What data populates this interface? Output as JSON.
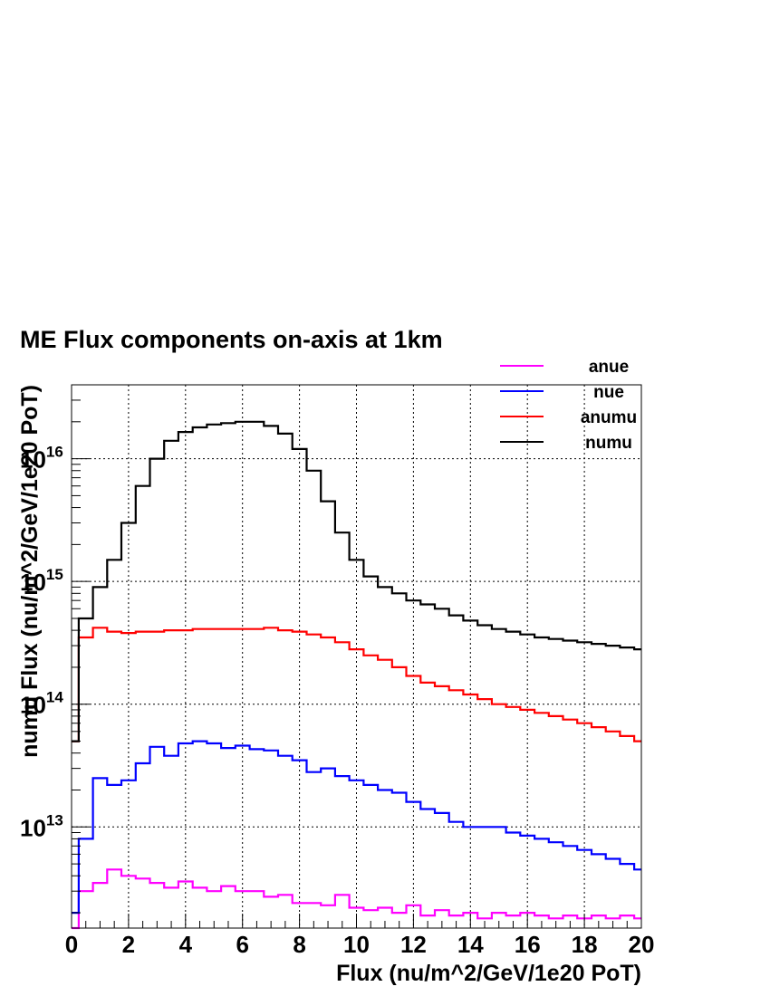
{
  "chart_data": {
    "type": "line",
    "title": "ME Flux components on-axis at 1km",
    "xlabel": "Flux (nu/m^2/GeV/1e20 PoT)",
    "ylabel": "numu Flux (nu/m^2/GeV/1e20 PoT)",
    "xlim": [
      0,
      20
    ],
    "ylim": [
      1500000000000.0,
      4e+16
    ],
    "yscale": "log",
    "grid": true,
    "legend_position": "top-right",
    "x_ticks": [
      "0",
      "2",
      "4",
      "6",
      "8",
      "10",
      "12",
      "14",
      "16",
      "18",
      "20"
    ],
    "y_ticks": [
      {
        "base": "10",
        "exp": "13"
      },
      {
        "base": "10",
        "exp": "14"
      },
      {
        "base": "10",
        "exp": "15"
      },
      {
        "base": "10",
        "exp": "16"
      }
    ],
    "x": [
      0,
      0.5,
      1,
      1.5,
      2,
      2.5,
      3,
      3.5,
      4,
      4.5,
      5,
      5.5,
      6,
      6.5,
      7,
      7.5,
      8,
      8.5,
      9,
      9.5,
      10,
      10.5,
      11,
      11.5,
      12,
      12.5,
      13,
      13.5,
      14,
      14.5,
      15,
      15.5,
      16,
      16.5,
      17,
      17.5,
      18,
      18.5,
      19,
      19.5,
      20
    ],
    "series": [
      {
        "name": "anue",
        "color": "#ff00ff",
        "values": [
          1500000000000.0,
          3000000000000.0,
          3500000000000.0,
          4500000000000.0,
          4000000000000.0,
          3800000000000.0,
          3500000000000.0,
          3200000000000.0,
          3600000000000.0,
          3200000000000.0,
          3000000000000.0,
          3300000000000.0,
          3000000000000.0,
          3000000000000.0,
          2700000000000.0,
          2800000000000.0,
          2400000000000.0,
          2400000000000.0,
          2300000000000.0,
          2800000000000.0,
          2200000000000.0,
          2100000000000.0,
          2200000000000.0,
          2000000000000.0,
          2300000000000.0,
          1900000000000.0,
          2100000000000.0,
          1900000000000.0,
          2000000000000.0,
          1800000000000.0,
          2000000000000.0,
          1900000000000.0,
          2000000000000.0,
          1900000000000.0,
          1800000000000.0,
          1900000000000.0,
          1800000000000.0,
          1900000000000.0,
          1800000000000.0,
          1900000000000.0,
          1800000000000.0
        ]
      },
      {
        "name": "nue",
        "color": "#0000ff",
        "values": [
          2000000000000.0,
          8000000000000.0,
          25000000000000.0,
          22000000000000.0,
          24000000000000.0,
          33000000000000.0,
          45000000000000.0,
          38000000000000.0,
          48000000000000.0,
          50000000000000.0,
          48000000000000.0,
          44000000000000.0,
          46000000000000.0,
          43000000000000.0,
          42000000000000.0,
          38000000000000.0,
          35000000000000.0,
          28000000000000.0,
          30000000000000.0,
          26000000000000.0,
          24000000000000.0,
          22000000000000.0,
          20000000000000.0,
          19000000000000.0,
          16000000000000.0,
          14000000000000.0,
          13000000000000.0,
          11000000000000.0,
          10000000000000.0,
          10000000000000.0,
          10000000000000.0,
          9000000000000.0,
          8500000000000.0,
          8000000000000.0,
          7500000000000.0,
          7000000000000.0,
          6500000000000.0,
          6000000000000.0,
          5500000000000.0,
          5000000000000.0,
          4500000000000.0
        ]
      },
      {
        "name": "anumu",
        "color": "#ff0000",
        "values": [
          50000000000000.0,
          350000000000000.0,
          420000000000000.0,
          390000000000000.0,
          380000000000000.0,
          390000000000000.0,
          390000000000000.0,
          400000000000000.0,
          400000000000000.0,
          410000000000000.0,
          410000000000000.0,
          410000000000000.0,
          410000000000000.0,
          410000000000000.0,
          420000000000000.0,
          400000000000000.0,
          390000000000000.0,
          370000000000000.0,
          350000000000000.0,
          320000000000000.0,
          280000000000000.0,
          250000000000000.0,
          230000000000000.0,
          200000000000000.0,
          170000000000000.0,
          150000000000000.0,
          140000000000000.0,
          130000000000000.0,
          120000000000000.0,
          110000000000000.0,
          100000000000000.0,
          95000000000000.0,
          90000000000000.0,
          85000000000000.0,
          80000000000000.0,
          75000000000000.0,
          70000000000000.0,
          65000000000000.0,
          60000000000000.0,
          55000000000000.0,
          50000000000000.0
        ]
      },
      {
        "name": "numu",
        "color": "#000000",
        "values": [
          50000000000000.0,
          500000000000000.0,
          900000000000000.0,
          1500000000000000.0,
          3000000000000000.0,
          6000000000000000.0,
          1e+16,
          1.4e+16,
          1.65e+16,
          1.8e+16,
          1.9e+16,
          1.95e+16,
          2e+16,
          2e+16,
          1.85e+16,
          1.6e+16,
          1.2e+16,
          8000000000000000.0,
          4500000000000000.0,
          2500000000000000.0,
          1500000000000000.0,
          1100000000000000.0,
          900000000000000.0,
          800000000000000.0,
          700000000000000.0,
          650000000000000.0,
          600000000000000.0,
          530000000000000.0,
          480000000000000.0,
          440000000000000.0,
          410000000000000.0,
          390000000000000.0,
          370000000000000.0,
          350000000000000.0,
          340000000000000.0,
          330000000000000.0,
          320000000000000.0,
          310000000000000.0,
          300000000000000.0,
          290000000000000.0,
          280000000000000.0
        ]
      }
    ]
  }
}
